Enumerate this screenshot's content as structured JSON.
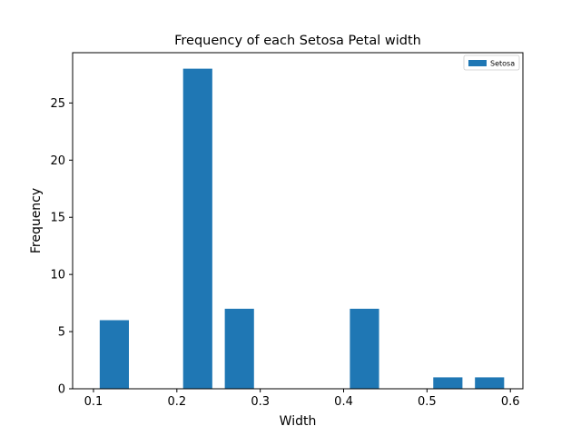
{
  "chart_data": {
    "type": "bar",
    "title": "Frequency of each Setosa Petal width",
    "xlabel": "Width",
    "ylabel": "Frequency",
    "xlim": [
      0.075,
      0.615
    ],
    "ylim": [
      0,
      29.4
    ],
    "bar_width": 0.035,
    "x_ticks": [
      0.1,
      0.2,
      0.3,
      0.4,
      0.5,
      0.6
    ],
    "x_tick_labels": [
      "0.1",
      "0.2",
      "0.3",
      "0.4",
      "0.5",
      "0.6"
    ],
    "y_ticks": [
      0,
      5,
      10,
      15,
      20,
      25
    ],
    "y_tick_labels": [
      "0",
      "5",
      "10",
      "15",
      "20",
      "25"
    ],
    "grid": false,
    "legend_position": "top-right",
    "series": [
      {
        "name": "Setosa",
        "color": "#1f77b4",
        "x": [
          0.125,
          0.225,
          0.275,
          0.425,
          0.525,
          0.575
        ],
        "values": [
          6,
          28,
          7,
          7,
          1,
          1
        ]
      }
    ]
  }
}
